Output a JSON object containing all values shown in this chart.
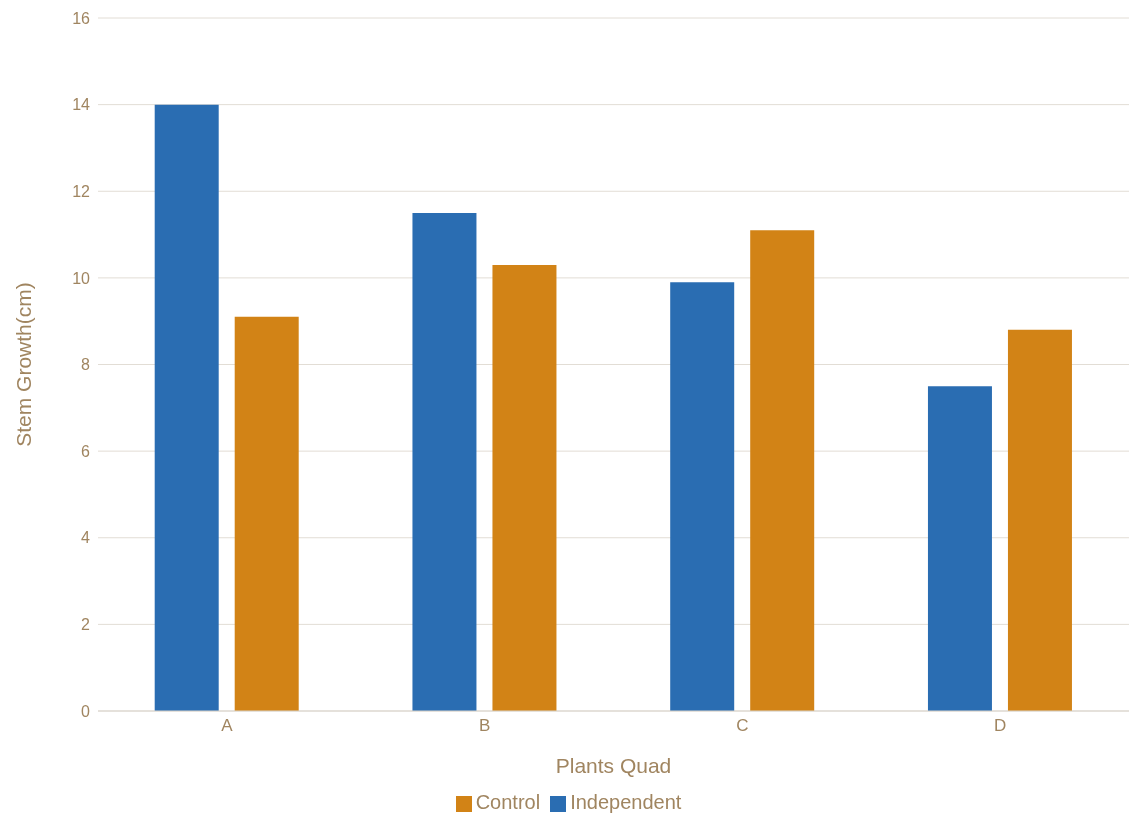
{
  "chart_data": {
    "type": "bar",
    "xlabel": "Plants Quad",
    "ylabel": "Stem Growth(cm)",
    "categories": [
      "A",
      "B",
      "C",
      "D"
    ],
    "series": [
      {
        "name": "Independent",
        "color": "#2a6db2",
        "values": [
          14,
          11.5,
          9.9,
          7.5
        ]
      },
      {
        "name": "Control",
        "color": "#d28316",
        "values": [
          9.1,
          10.3,
          11.1,
          8.8
        ]
      }
    ],
    "ylim": [
      0,
      16
    ],
    "yticks": [
      0,
      2,
      4,
      6,
      8,
      10,
      12,
      14,
      16
    ],
    "grid": "y",
    "legend": "bottom"
  }
}
